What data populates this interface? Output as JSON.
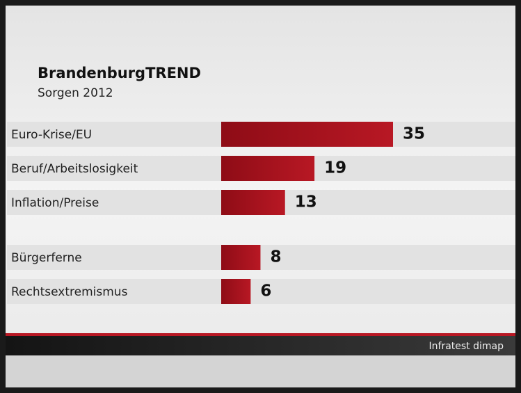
{
  "chart_data": {
    "type": "bar",
    "orientation": "horizontal",
    "title": "BrandenburgTREND",
    "subtitle": "Sorgen 2012",
    "categories": [
      "Euro-Krise/EU",
      "Beruf/Arbeitslosigkeit",
      "Inflation/Preise",
      "Bürgerferne",
      "Rechtsextremismus"
    ],
    "values": [
      35,
      19,
      13,
      8,
      6
    ],
    "color": "#a3101c",
    "source": "Infratest dimap"
  }
}
